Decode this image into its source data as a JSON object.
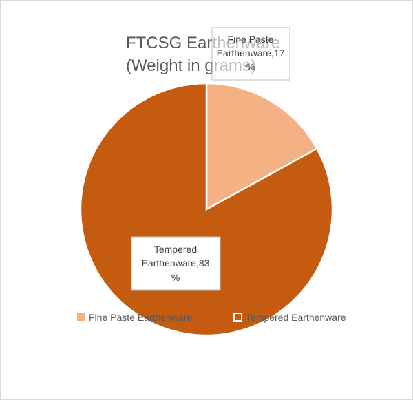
{
  "chart_data": {
    "type": "pie",
    "title": "FTCSG Earthenware (Weight in grams)",
    "title_lines": [
      "FTCSG Earthenware",
      "(Weight in grams)"
    ],
    "categories": [
      "Fine Paste Earthenware",
      "Tempered Earthenware"
    ],
    "values": [
      17,
      83
    ],
    "unit": "%",
    "colors": [
      "#F4B183",
      "#C55A11"
    ],
    "data_labels": [
      [
        "Fine Paste",
        "Earthenware,17",
        "%"
      ],
      [
        "Tempered",
        "Earthenware,83",
        "%"
      ]
    ],
    "legend": {
      "position": "bottom",
      "entries": [
        "Fine Paste Earthenware",
        "Tempered Earthenware"
      ]
    }
  }
}
